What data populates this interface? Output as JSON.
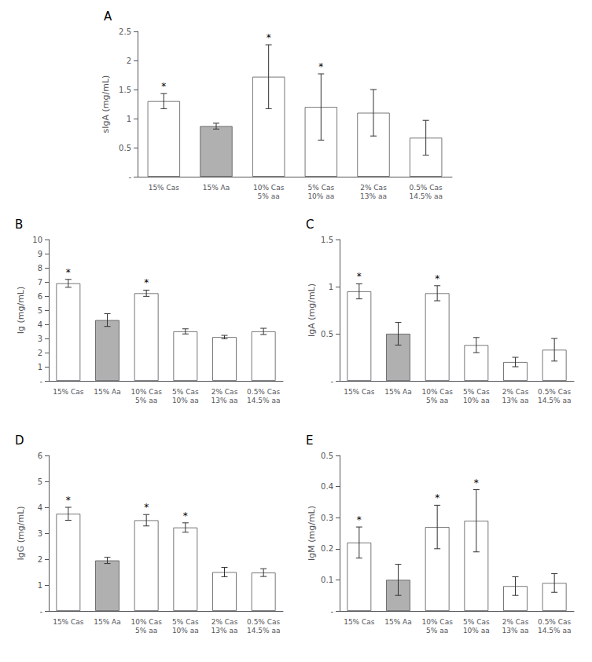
{
  "chart_data": [
    {
      "type": "bar",
      "title": "A",
      "ylabel": "sIgA (mg/mL)",
      "categories": [
        "15% Cas",
        "15% Aa",
        "10% Cas\n5% aa",
        "5% Cas\n10% aa",
        "2% Cas\n13% aa",
        "0.5% Cas\n14.5% aa"
      ],
      "values": [
        1.3,
        0.87,
        1.72,
        1.2,
        1.1,
        0.67
      ],
      "errors": [
        0.13,
        0.05,
        0.55,
        0.57,
        0.4,
        0.3
      ],
      "colors": [
        "white",
        "#b0b0b0",
        "white",
        "white",
        "white",
        "white"
      ],
      "annotations": [
        {
          "category": "15% Cas",
          "text": "*"
        },
        {
          "category": "10% Cas\n5% aa",
          "text": "*"
        },
        {
          "category": "5% Cas\n10% aa",
          "text": "*"
        }
      ],
      "ylim": [
        0,
        2.5
      ],
      "yticks": [
        {
          "value": 0,
          "label": "-"
        },
        0.5,
        1,
        1.5,
        2,
        2.5
      ],
      "grid": false
    },
    {
      "type": "bar",
      "title": "B",
      "ylabel": "Ig (mg/mL)",
      "categories": [
        "15% Cas",
        "15% Aa",
        "10% Cas\n5% aa",
        "5% Cas\n10% aa",
        "2% Cas\n13% aa",
        "0.5% Cas\n14.5% aa"
      ],
      "values": [
        6.9,
        4.3,
        6.2,
        3.5,
        3.1,
        3.5
      ],
      "errors": [
        0.28,
        0.45,
        0.22,
        0.18,
        0.12,
        0.22
      ],
      "colors": [
        "white",
        "#b0b0b0",
        "white",
        "white",
        "white",
        "white"
      ],
      "annotations": [
        {
          "category": "15% Cas",
          "text": "*"
        },
        {
          "category": "10% Cas\n5% aa",
          "text": "*"
        }
      ],
      "ylim": [
        0,
        10
      ],
      "yticks": [
        {
          "value": 0,
          "label": "-"
        },
        1,
        2,
        3,
        4,
        5,
        6,
        7,
        8,
        9,
        10
      ],
      "grid": false
    },
    {
      "type": "bar",
      "title": "C",
      "ylabel": "IgA (mg/mL)",
      "categories": [
        "15% Cas",
        "15% Aa",
        "10% Cas\n5% aa",
        "5% Cas\n10% aa",
        "2% Cas\n13% aa",
        "0.5% Cas\n14.5% aa"
      ],
      "values": [
        0.95,
        0.5,
        0.93,
        0.38,
        0.2,
        0.33
      ],
      "errors": [
        0.08,
        0.12,
        0.08,
        0.08,
        0.05,
        0.12
      ],
      "colors": [
        "white",
        "#b0b0b0",
        "white",
        "white",
        "white",
        "white"
      ],
      "annotations": [
        {
          "category": "15% Cas",
          "text": "*"
        },
        {
          "category": "10% Cas\n5% aa",
          "text": "*"
        }
      ],
      "ylim": [
        0,
        1.5
      ],
      "yticks": [
        {
          "value": 0,
          "label": "-"
        },
        0.5,
        1,
        1.5
      ],
      "grid": false
    },
    {
      "type": "bar",
      "title": "D",
      "ylabel": "IgG (mg/mL)",
      "categories": [
        "15% Cas",
        "15% Aa",
        "10% Cas\n5% aa",
        "5% Cas\n10% aa",
        "2% Cas\n13% aa",
        "0.5% Cas\n14.5% aa"
      ],
      "values": [
        3.75,
        1.95,
        3.5,
        3.22,
        1.5,
        1.48
      ],
      "errors": [
        0.25,
        0.12,
        0.22,
        0.18,
        0.18,
        0.15
      ],
      "colors": [
        "white",
        "#b0b0b0",
        "white",
        "white",
        "white",
        "white"
      ],
      "annotations": [
        {
          "category": "15% Cas",
          "text": "*"
        },
        {
          "category": "10% Cas\n5% aa",
          "text": "*"
        },
        {
          "category": "5% Cas\n10% aa",
          "text": "*"
        }
      ],
      "ylim": [
        0,
        6
      ],
      "yticks": [
        {
          "value": 0,
          "label": "-"
        },
        1,
        2,
        3,
        4,
        5,
        6
      ],
      "grid": false
    },
    {
      "type": "bar",
      "title": "E",
      "ylabel": "IgM (mg/mL)",
      "categories": [
        "15% Cas",
        "15% Aa",
        "10% Cas\n5% aa",
        "5% Cas\n10% aa",
        "2% Cas\n13% aa",
        "0.5% Cas\n14.5% aa"
      ],
      "values": [
        0.22,
        0.1,
        0.27,
        0.29,
        0.08,
        0.09
      ],
      "errors": [
        0.05,
        0.05,
        0.07,
        0.1,
        0.03,
        0.03
      ],
      "colors": [
        "white",
        "#b0b0b0",
        "white",
        "white",
        "white",
        "white"
      ],
      "annotations": [
        {
          "category": "15% Cas",
          "text": "*"
        },
        {
          "category": "10% Cas\n5% aa",
          "text": "*"
        },
        {
          "category": "5% Cas\n10% aa",
          "text": "*"
        }
      ],
      "ylim": [
        0,
        0.5
      ],
      "yticks": [
        {
          "value": 0,
          "label": "-"
        },
        0.1,
        0.2,
        0.3,
        0.4,
        0.5
      ],
      "grid": false
    }
  ]
}
